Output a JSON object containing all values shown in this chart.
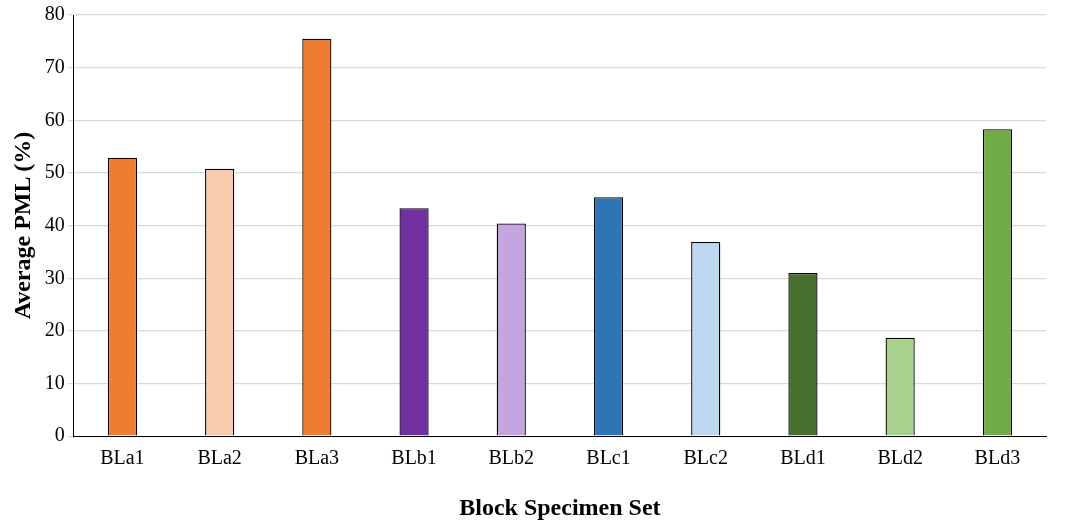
{
  "chart_data": {
    "type": "bar",
    "xlabel": "Block Specimen Set",
    "ylabel": "Average PML (%)",
    "categories": [
      "BLa1",
      "BLa2",
      "BLa3",
      "BLb1",
      "BLb2",
      "BLc1",
      "BLc2",
      "BLd1",
      "BLd2",
      "BLd3"
    ],
    "values": [
      52.9,
      50.8,
      75.5,
      43.3,
      40.4,
      45.4,
      36.9,
      31.0,
      18.7,
      58.3
    ],
    "colors": [
      "#ed7d31",
      "#f8cbad",
      "#ed7d31",
      "#7030a0",
      "#c5a5e0",
      "#2e75b6",
      "#bdd7ee",
      "#4a7030",
      "#a9d18e",
      "#70ad47"
    ],
    "ylim": [
      0,
      80
    ],
    "yticks": [
      0,
      10,
      20,
      30,
      40,
      50,
      60,
      70,
      80
    ],
    "grid": "y",
    "legend": false
  }
}
